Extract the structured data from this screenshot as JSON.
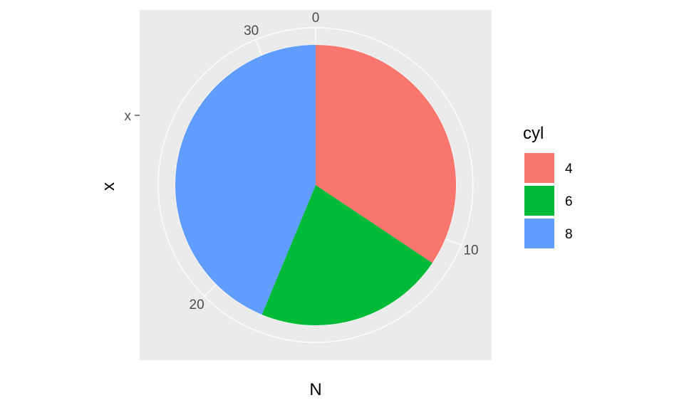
{
  "chart_data": {
    "type": "pie",
    "xlabel": "N",
    "ylabel": "x",
    "y_tick_label": "x",
    "radial_ticks": [
      0,
      10,
      20,
      30
    ],
    "total": 32,
    "legend": {
      "title": "cyl",
      "position": "right"
    },
    "slices": [
      {
        "label": "4",
        "value": 11,
        "color": "#F8766D"
      },
      {
        "label": "6",
        "value": 7,
        "color": "#00BA38"
      },
      {
        "label": "8",
        "value": 14,
        "color": "#619CFF"
      }
    ],
    "panel_background": "#EBEBEB",
    "grid_color": "#FFFFFF"
  }
}
